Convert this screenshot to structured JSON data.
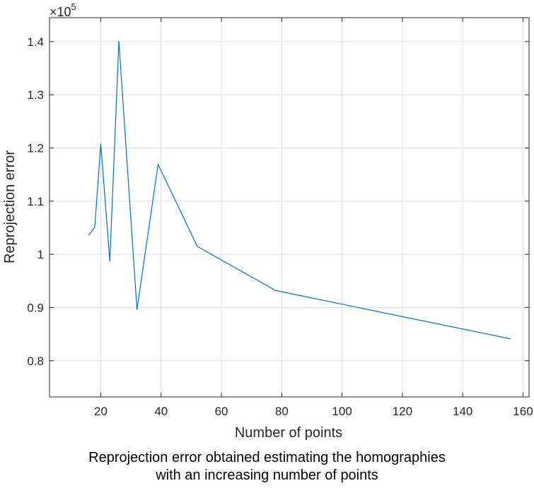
{
  "chart_data": {
    "type": "line",
    "xlabel": "Number of points",
    "ylabel": "Reprojection error",
    "y_exponent_label": "×10",
    "y_exponent_power": "5",
    "xlim": [
      3,
      162
    ],
    "ylim": [
      0.732,
      1.445
    ],
    "y_multiplier": 100000,
    "grid": true,
    "x_ticks": [
      20,
      40,
      60,
      80,
      100,
      120,
      140,
      160
    ],
    "x_tick_labels": [
      "20",
      "40",
      "60",
      "80",
      "100",
      "120",
      "140",
      "160"
    ],
    "y_ticks": [
      0.8,
      0.9,
      1.0,
      1.1,
      1.2,
      1.3,
      1.4
    ],
    "y_tick_labels": [
      "0.8",
      "0.9",
      "1",
      "1.1",
      "1.2",
      "1.3",
      "1.4"
    ],
    "series": [
      {
        "color": "#0072BD",
        "x": [
          16,
          18,
          20,
          23,
          26,
          32,
          39,
          52,
          78,
          156
        ],
        "y": [
          1.036,
          1.051,
          1.208,
          0.987,
          1.401,
          0.896,
          1.169,
          1.015,
          0.932,
          0.841
        ]
      }
    ]
  },
  "caption": {
    "line1": "Reprojection error obtained estimating the homographies",
    "line2": "with an increasing number of points"
  }
}
